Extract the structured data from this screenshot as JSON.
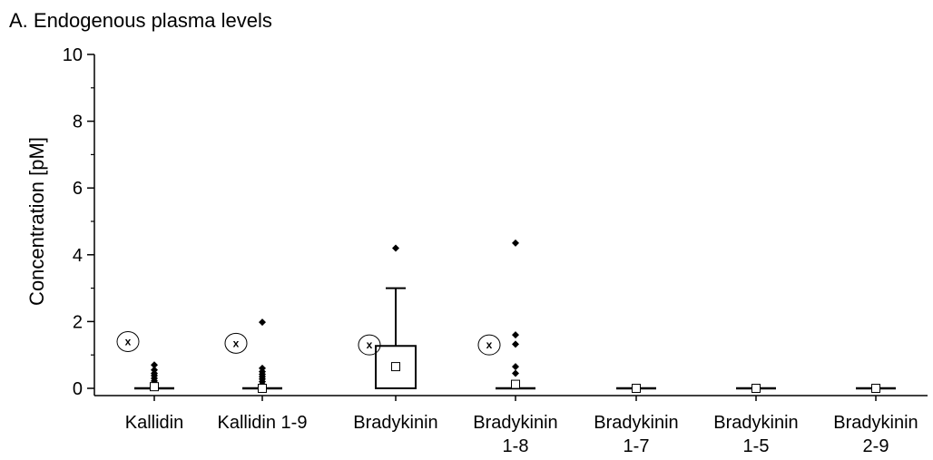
{
  "chart_data": {
    "type": "box",
    "title": "A. Endogenous plasma levels",
    "xlabel": "",
    "ylabel": "Concentration [pM]",
    "ylim": [
      0,
      10
    ],
    "yticks": [
      0,
      2,
      4,
      6,
      8,
      10
    ],
    "grid": false,
    "legend": "none",
    "categories": [
      {
        "label": [
          "Kallidin"
        ],
        "box_q1": 0,
        "box_q3": 0,
        "mean": 0.05,
        "whisker_high": null,
        "outliers": [
          0.7,
          0.55,
          0.45,
          0.38,
          0.3,
          0.22,
          0.15,
          0.08
        ],
        "excluded_marker": 1.4
      },
      {
        "label": [
          "Kallidin 1-9"
        ],
        "box_q1": 0,
        "box_q3": 0,
        "mean": 0.0,
        "whisker_high": null,
        "outliers": [
          1.98,
          0.6,
          0.5,
          0.42,
          0.35,
          0.28,
          0.2,
          0.12
        ],
        "excluded_marker": 1.35
      },
      {
        "label": [
          "Bradykinin"
        ],
        "box_q1": 0,
        "box_q3": 1.27,
        "mean": 0.65,
        "whisker_high": 3.0,
        "outliers": [
          4.2
        ],
        "excluded_marker": 1.3
      },
      {
        "label": [
          "Bradykinin",
          "1-8"
        ],
        "box_q1": 0,
        "box_q3": 0,
        "mean": 0.12,
        "whisker_high": null,
        "outliers": [
          4.35,
          1.6,
          1.32,
          0.65,
          0.45
        ],
        "excluded_marker": 1.3
      },
      {
        "label": [
          "Bradykinin",
          "1-7"
        ],
        "box_q1": 0,
        "box_q3": 0,
        "mean": 0.0,
        "whisker_high": null,
        "outliers": [],
        "excluded_marker": null
      },
      {
        "label": [
          "Bradykinin",
          "1-5"
        ],
        "box_q1": 0,
        "box_q3": 0,
        "mean": 0.0,
        "whisker_high": null,
        "outliers": [],
        "excluded_marker": null
      },
      {
        "label": [
          "Bradykinin",
          "2-9"
        ],
        "box_q1": 0,
        "box_q3": 0,
        "mean": 0.0,
        "whisker_high": null,
        "outliers": [],
        "excluded_marker": null
      }
    ],
    "excluded_marker_symbol": "x"
  }
}
